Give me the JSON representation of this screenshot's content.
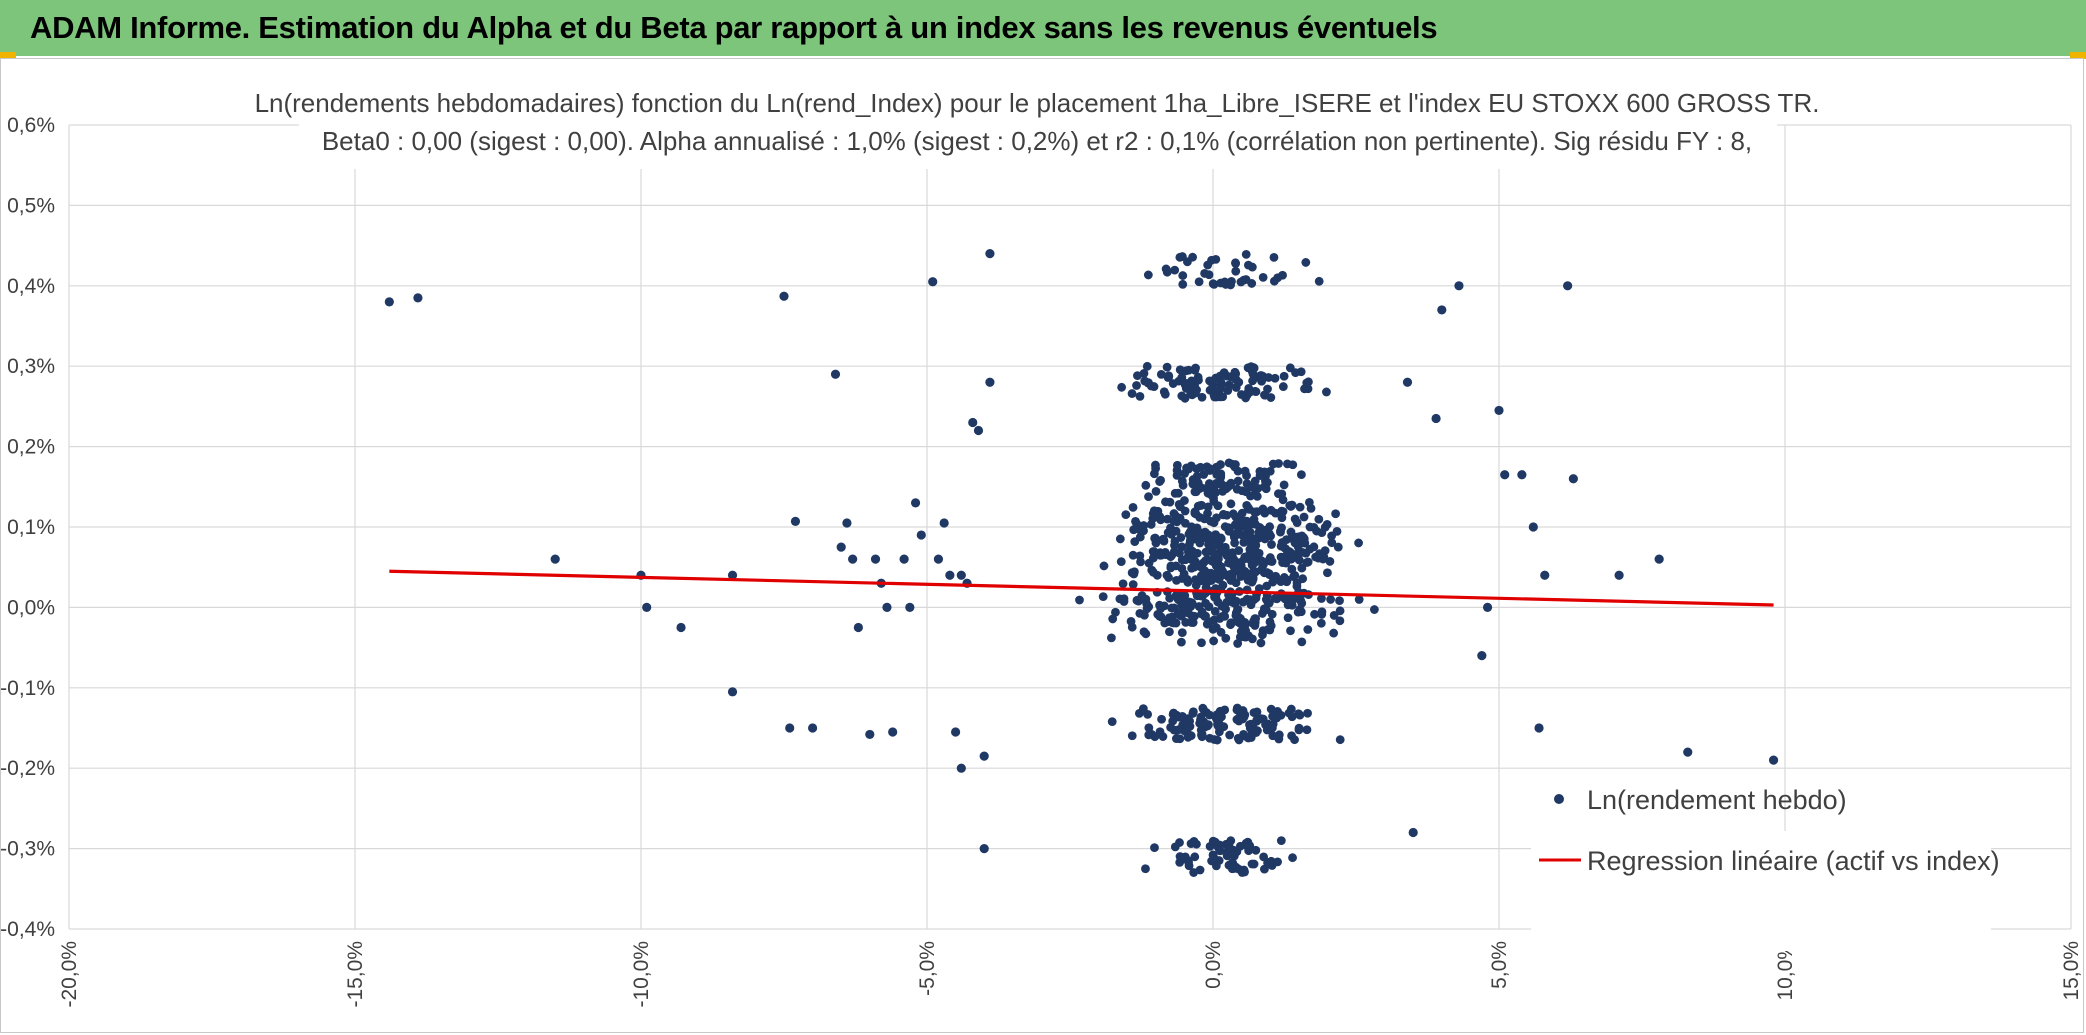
{
  "header": {
    "title": "ADAM Informe. Estimation du Alpha et du Beta par rapport à un index sans les revenus éventuels",
    "background": "#7dc57b",
    "accent": "#f0b400"
  },
  "chart_data": {
    "type": "scatter",
    "title": "Ln(rendements hebdomadaires) fonction du Ln(rend_Index) pour le placement 1ha_Libre_ISERE et l'index EU STOXX 600 GROSS TR.",
    "subtitle": "Beta0 : 0,00 (sigest : 0,00). Alpha annualisé : 1,0% (sigest : 0,2%) et r2 : 0,1% (corrélation non pertinente). Sig résidu FY : 8,",
    "xlabel": "",
    "ylabel": "",
    "xlim": [
      -0.2,
      0.15
    ],
    "ylim": [
      -0.004,
      0.006
    ],
    "x_ticks": [
      "-20,0%",
      "-15,0%",
      "-10,0%",
      "-5,0%",
      "0,0%",
      "5,0%",
      "10,0%",
      "15,0%"
    ],
    "y_ticks": [
      "-0,4%",
      "-0,3%",
      "-0,2%",
      "-0,1%",
      "0,0%",
      "0,1%",
      "0,2%",
      "0,3%",
      "0,4%",
      "0,5%",
      "0,6%"
    ],
    "grid": true,
    "legend_position": "bottom-right",
    "series": [
      {
        "name": "Ln(rendement hebdo)",
        "type": "scatter",
        "color": "#203864",
        "points": [
          [
            -0.144,
            0.0038
          ],
          [
            -0.139,
            0.00385
          ],
          [
            -0.115,
            0.0006
          ],
          [
            -0.1,
            0.0004
          ],
          [
            -0.099,
            0.0
          ],
          [
            -0.093,
            -0.00025
          ],
          [
            -0.084,
            -0.00105
          ],
          [
            -0.084,
            0.0004
          ],
          [
            -0.075,
            0.00387
          ],
          [
            -0.074,
            -0.0015
          ],
          [
            -0.073,
            0.00107
          ],
          [
            -0.07,
            -0.0015
          ],
          [
            -0.066,
            0.0029
          ],
          [
            -0.065,
            0.00075
          ],
          [
            -0.064,
            0.00105
          ],
          [
            -0.063,
            0.0006
          ],
          [
            -0.062,
            -0.00025
          ],
          [
            -0.06,
            -0.00158
          ],
          [
            -0.059,
            0.0006
          ],
          [
            -0.058,
            0.0003
          ],
          [
            -0.057,
            0.0
          ],
          [
            -0.056,
            -0.00155
          ],
          [
            -0.054,
            0.0006
          ],
          [
            -0.053,
            0.0
          ],
          [
            -0.052,
            0.0013
          ],
          [
            -0.051,
            0.0009
          ],
          [
            -0.049,
            0.00405
          ],
          [
            -0.048,
            0.0006
          ],
          [
            -0.047,
            0.00105
          ],
          [
            -0.046,
            0.0004
          ],
          [
            -0.045,
            -0.00155
          ],
          [
            -0.044,
            -0.002
          ],
          [
            -0.044,
            0.0004
          ],
          [
            -0.043,
            0.0003
          ],
          [
            -0.042,
            0.0023
          ],
          [
            -0.041,
            0.0022
          ],
          [
            -0.04,
            -0.00185
          ],
          [
            -0.04,
            -0.003
          ],
          [
            -0.039,
            0.0044
          ],
          [
            -0.039,
            0.0028
          ]
        ]
      },
      {
        "name": "Regression linéaire (actif vs index)",
        "type": "line",
        "color": "#e00000",
        "x": [
          -0.144,
          0.098
        ],
        "y": [
          0.00045,
          3e-05
        ]
      }
    ]
  }
}
